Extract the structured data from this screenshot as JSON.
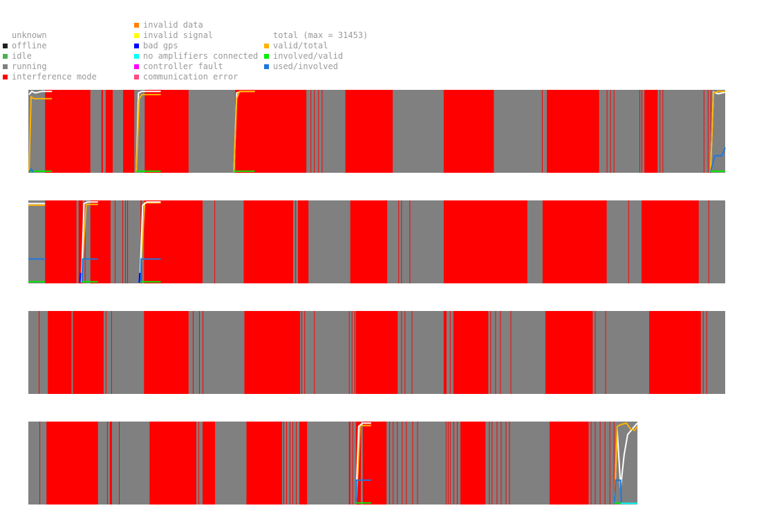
{
  "legend": {
    "status": [
      {
        "label": "unknown",
        "color": ""
      },
      {
        "label": "offline",
        "color": "#202020"
      },
      {
        "label": "idle",
        "color": "#4caf50"
      },
      {
        "label": "running",
        "color": "#808080"
      },
      {
        "label": "interference mode",
        "color": "#ff0000"
      }
    ],
    "errors": [
      {
        "label": "invalid data",
        "color": "#ff7f00"
      },
      {
        "label": "invalid signal",
        "color": "#ffff00"
      },
      {
        "label": "bad gps",
        "color": "#0000ff"
      },
      {
        "label": "no amplifiers connected",
        "color": "#00ffff"
      },
      {
        "label": "controller fault",
        "color": "#ff00ff"
      },
      {
        "label": "communication error",
        "color": "#ff4a7d"
      }
    ],
    "ratios": [
      {
        "label": "total (max = 31453)",
        "color": ""
      },
      {
        "label": "valid/total",
        "color": "#ffb300"
      },
      {
        "label": "involved/valid",
        "color": "#00ee00"
      },
      {
        "label": "used/involved",
        "color": "#1e78dc"
      }
    ]
  },
  "chart_data": {
    "type": "area",
    "title": "",
    "total_max": 31453,
    "time_range": [
      0,
      1
    ],
    "colors": {
      "running": "#808080",
      "interference": "#ff0000",
      "total": "#ffffff",
      "valid_total": "#ffb300",
      "involved_valid": "#00ee00",
      "used_involved": "#1e78dc",
      "bad_gps": "#0000ff",
      "no_amp": "#00ffff"
    },
    "panels": [
      {
        "span": 1.0,
        "interference_intervals": [
          [
            0.024,
            0.089
          ],
          [
            0.105,
            0.107
          ],
          [
            0.111,
            0.121
          ],
          [
            0.136,
            0.152
          ],
          [
            0.167,
            0.23
          ],
          [
            0.297,
            0.399
          ],
          [
            0.405,
            0.406
          ],
          [
            0.41,
            0.411
          ],
          [
            0.416,
            0.417
          ],
          [
            0.421,
            0.422
          ],
          [
            0.455,
            0.523
          ],
          [
            0.596,
            0.668
          ],
          [
            0.737,
            0.738
          ],
          [
            0.744,
            0.819
          ],
          [
            0.83,
            0.831
          ],
          [
            0.835,
            0.836
          ],
          [
            0.84,
            0.841
          ],
          [
            0.877,
            0.878
          ],
          [
            0.88,
            0.881
          ],
          [
            0.884,
            0.903
          ],
          [
            0.906,
            0.907
          ],
          [
            0.91,
            0.911
          ],
          [
            0.969,
            0.97
          ],
          [
            0.975,
            0.976
          ],
          [
            0.979,
            0.98
          ]
        ],
        "overlays": [
          {
            "type": "total",
            "x": [
              0.001,
              0.005,
              0.01,
              0.02,
              0.034
            ],
            "y": [
              0.95,
              0.99,
              0.97,
              0.99,
              0.99
            ]
          },
          {
            "type": "valid_total",
            "x": [
              0.001,
              0.004,
              0.008,
              0.034
            ],
            "y": [
              0.0,
              0.92,
              0.9,
              0.9
            ]
          },
          {
            "type": "total",
            "x": [
              0.155,
              0.158,
              0.163,
              0.19
            ],
            "y": [
              0.0,
              0.97,
              0.99,
              0.99
            ]
          },
          {
            "type": "valid_total",
            "x": [
              0.155,
              0.159,
              0.163,
              0.19
            ],
            "y": [
              0.0,
              0.9,
              0.95,
              0.95
            ]
          },
          {
            "type": "total",
            "x": [
              0.295,
              0.299,
              0.305,
              0.325
            ],
            "y": [
              0.0,
              0.97,
              0.99,
              0.99
            ]
          },
          {
            "type": "valid_total",
            "x": [
              0.295,
              0.299,
              0.303,
              0.325
            ],
            "y": [
              0.0,
              0.9,
              0.99,
              0.99
            ]
          },
          {
            "type": "total",
            "x": [
              0.979,
              0.983,
              0.99,
              1.0
            ],
            "y": [
              0.0,
              0.98,
              0.96,
              0.98
            ]
          },
          {
            "type": "valid_total",
            "x": [
              0.979,
              0.983,
              0.99,
              1.0
            ],
            "y": [
              0.0,
              0.97,
              0.99,
              0.99
            ]
          },
          {
            "type": "used_involved",
            "x": [
              0.979,
              0.985,
              0.995,
              1.0
            ],
            "y": [
              0.0,
              0.2,
              0.2,
              0.3
            ]
          },
          {
            "type": "involved_valid",
            "x": [
              0.001,
              0.034
            ],
            "y": [
              0.01,
              0.01
            ]
          },
          {
            "type": "involved_valid",
            "x": [
              0.155,
              0.19
            ],
            "y": [
              0.01,
              0.01
            ]
          },
          {
            "type": "involved_valid",
            "x": [
              0.295,
              0.325
            ],
            "y": [
              0.01,
              0.01
            ]
          },
          {
            "type": "involved_valid",
            "x": [
              0.979,
              1.0
            ],
            "y": [
              0.01,
              0.01
            ]
          },
          {
            "type": "used_involved",
            "x": [
              0.001,
              0.004,
              0.007
            ],
            "y": [
              0.0,
              0.04,
              0.0
            ]
          }
        ]
      },
      {
        "span": 1.0,
        "interference_intervals": [
          [
            0.024,
            0.069
          ],
          [
            0.072,
            0.078
          ],
          [
            0.081,
            0.082
          ],
          [
            0.089,
            0.118
          ],
          [
            0.124,
            0.125
          ],
          [
            0.135,
            0.136
          ],
          [
            0.139,
            0.14
          ],
          [
            0.142,
            0.143
          ],
          [
            0.161,
            0.163
          ],
          [
            0.166,
            0.25
          ],
          [
            0.267,
            0.268
          ],
          [
            0.309,
            0.38
          ],
          [
            0.383,
            0.384
          ],
          [
            0.387,
            0.402
          ],
          [
            0.462,
            0.515
          ],
          [
            0.531,
            0.532
          ],
          [
            0.535,
            0.536
          ],
          [
            0.547,
            0.548
          ],
          [
            0.596,
            0.716
          ],
          [
            0.738,
            0.83
          ],
          [
            0.861,
            0.862
          ],
          [
            0.88,
            0.962
          ],
          [
            0.976,
            0.977
          ]
        ],
        "overlays": [
          {
            "type": "total",
            "x": [
              0.0,
              0.024
            ],
            "y": [
              0.97,
              0.97
            ]
          },
          {
            "type": "valid_total",
            "x": [
              0.0,
              0.024
            ],
            "y": [
              0.95,
              0.95
            ]
          },
          {
            "type": "valid_total",
            "x": [
              0.076,
              0.079,
              0.083,
              0.1
            ],
            "y": [
              0.0,
              0.4,
              0.96,
              0.96
            ]
          },
          {
            "type": "total",
            "x": [
              0.076,
              0.08,
              0.085,
              0.1
            ],
            "y": [
              0.0,
              0.97,
              0.99,
              0.99
            ]
          },
          {
            "type": "valid_total",
            "x": [
              0.16,
              0.163,
              0.167,
              0.19
            ],
            "y": [
              0.0,
              0.4,
              0.98,
              0.98
            ]
          },
          {
            "type": "total",
            "x": [
              0.16,
              0.164,
              0.17,
              0.19
            ],
            "y": [
              0.0,
              0.95,
              0.99,
              0.99
            ]
          },
          {
            "type": "used_involved",
            "x": [
              0.0,
              0.025
            ],
            "y": [
              0.29,
              0.29
            ]
          },
          {
            "type": "used_involved",
            "x": [
              0.077,
              0.078,
              0.1
            ],
            "y": [
              0.0,
              0.29,
              0.29
            ]
          },
          {
            "type": "used_involved",
            "x": [
              0.161,
              0.162,
              0.19
            ],
            "y": [
              0.0,
              0.29,
              0.29
            ]
          },
          {
            "type": "involved_valid",
            "x": [
              0.0,
              0.024
            ],
            "y": [
              0.01,
              0.01
            ]
          },
          {
            "type": "involved_valid",
            "x": [
              0.077,
              0.1
            ],
            "y": [
              0.01,
              0.01
            ]
          },
          {
            "type": "involved_valid",
            "x": [
              0.161,
              0.19
            ],
            "y": [
              0.01,
              0.01
            ]
          },
          {
            "type": "bad_gps",
            "x": [
              0.074,
              0.075
            ],
            "y": [
              0.0,
              0.12
            ]
          },
          {
            "type": "bad_gps",
            "x": [
              0.159,
              0.16
            ],
            "y": [
              0.0,
              0.12
            ]
          }
        ]
      },
      {
        "span": 1.0,
        "interference_intervals": [
          [
            0.015,
            0.016
          ],
          [
            0.028,
            0.062
          ],
          [
            0.064,
            0.108
          ],
          [
            0.111,
            0.112
          ],
          [
            0.119,
            0.12
          ],
          [
            0.166,
            0.23
          ],
          [
            0.236,
            0.237
          ],
          [
            0.245,
            0.246
          ],
          [
            0.25,
            0.251
          ],
          [
            0.31,
            0.39
          ],
          [
            0.392,
            0.393
          ],
          [
            0.396,
            0.397
          ],
          [
            0.41,
            0.411
          ],
          [
            0.46,
            0.461
          ],
          [
            0.464,
            0.465
          ],
          [
            0.468,
            0.469
          ],
          [
            0.47,
            0.53
          ],
          [
            0.535,
            0.536
          ],
          [
            0.54,
            0.541
          ],
          [
            0.55,
            0.551
          ],
          [
            0.596,
            0.6
          ],
          [
            0.605,
            0.606
          ],
          [
            0.61,
            0.66
          ],
          [
            0.663,
            0.664
          ],
          [
            0.67,
            0.671
          ],
          [
            0.677,
            0.678
          ],
          [
            0.692,
            0.693
          ],
          [
            0.742,
            0.81
          ],
          [
            0.813,
            0.814
          ],
          [
            0.828,
            0.829
          ],
          [
            0.891,
            0.965
          ],
          [
            0.968,
            0.969
          ],
          [
            0.973,
            0.974
          ]
        ],
        "overlays": []
      },
      {
        "span": 0.874,
        "interference_intervals": [
          [
            0.016,
            0.017
          ],
          [
            0.026,
            0.1
          ],
          [
            0.113,
            0.114
          ],
          [
            0.117,
            0.12
          ],
          [
            0.13,
            0.131
          ],
          [
            0.174,
            0.241
          ],
          [
            0.244,
            0.245
          ],
          [
            0.25,
            0.268
          ],
          [
            0.313,
            0.364
          ],
          [
            0.366,
            0.367
          ],
          [
            0.37,
            0.371
          ],
          [
            0.375,
            0.376
          ],
          [
            0.379,
            0.38
          ],
          [
            0.384,
            0.385
          ],
          [
            0.389,
            0.4
          ],
          [
            0.46,
            0.462
          ],
          [
            0.465,
            0.466
          ],
          [
            0.47,
            0.477
          ],
          [
            0.48,
            0.514
          ],
          [
            0.518,
            0.519
          ],
          [
            0.523,
            0.524
          ],
          [
            0.529,
            0.53
          ],
          [
            0.536,
            0.537
          ],
          [
            0.542,
            0.543
          ],
          [
            0.551,
            0.552
          ],
          [
            0.558,
            0.559
          ],
          [
            0.599,
            0.6
          ],
          [
            0.602,
            0.603
          ],
          [
            0.605,
            0.606
          ],
          [
            0.61,
            0.611
          ],
          [
            0.615,
            0.616
          ],
          [
            0.62,
            0.656
          ],
          [
            0.661,
            0.662
          ],
          [
            0.665,
            0.666
          ],
          [
            0.672,
            0.673
          ],
          [
            0.678,
            0.679
          ],
          [
            0.685,
            0.686
          ],
          [
            0.69,
            0.691
          ],
          [
            0.748,
            0.804
          ],
          [
            0.807,
            0.808
          ],
          [
            0.813,
            0.814
          ],
          [
            0.82,
            0.821
          ],
          [
            0.827,
            0.828
          ],
          [
            0.834,
            0.835
          ],
          [
            0.84,
            0.841
          ]
        ],
        "overlays": [
          {
            "type": "valid_total",
            "x": [
              0.47,
              0.473,
              0.476,
              0.492
            ],
            "y": [
              0.0,
              0.4,
              0.96,
              0.96
            ]
          },
          {
            "type": "total",
            "x": [
              0.47,
              0.474,
              0.48,
              0.492
            ],
            "y": [
              0.0,
              0.95,
              0.99,
              0.99
            ]
          },
          {
            "type": "used_involved",
            "x": [
              0.47,
              0.471,
              0.492
            ],
            "y": [
              0.0,
              0.29,
              0.29
            ]
          },
          {
            "type": "involved_valid",
            "x": [
              0.47,
              0.492
            ],
            "y": [
              0.01,
              0.01
            ]
          },
          {
            "type": "total",
            "x": [
              0.841,
              0.845,
              0.85,
              0.855,
              0.86,
              0.868,
              0.874
            ],
            "y": [
              0.0,
              0.9,
              0.2,
              0.6,
              0.85,
              0.93,
              0.99
            ]
          },
          {
            "type": "valid_total",
            "x": [
              0.841,
              0.845,
              0.85,
              0.858,
              0.864,
              0.87,
              0.874
            ],
            "y": [
              0.0,
              0.95,
              0.97,
              0.99,
              0.92,
              0.9,
              0.95
            ]
          },
          {
            "type": "used_involved",
            "x": [
              0.841,
              0.843,
              0.85,
              0.851
            ],
            "y": [
              0.0,
              0.29,
              0.29,
              0.0
            ]
          },
          {
            "type": "involved_valid",
            "x": [
              0.841,
              0.85
            ],
            "y": [
              0.01,
              0.01
            ]
          },
          {
            "type": "no_amp",
            "x": [
              0.85,
              0.874
            ],
            "y": [
              0.005,
              0.005
            ]
          }
        ]
      }
    ]
  }
}
